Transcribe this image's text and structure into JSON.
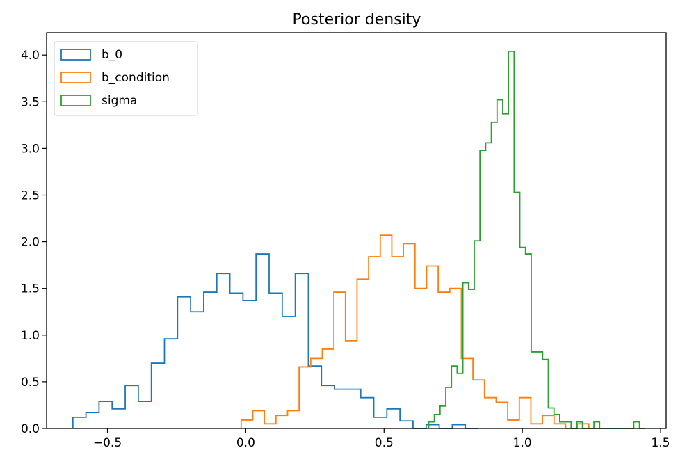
{
  "chart_data": {
    "type": "histogram",
    "title": "Posterior density",
    "xlabel": "",
    "ylabel": "",
    "xlim": [
      -0.72,
      1.52
    ],
    "ylim": [
      0,
      4.24
    ],
    "x_ticks": [
      -0.5,
      0.0,
      0.5,
      1.0,
      1.5
    ],
    "x_tick_labels": [
      "−0.5",
      "0.0",
      "0.5",
      "1.0",
      "1.5"
    ],
    "y_ticks": [
      0.0,
      0.5,
      1.0,
      1.5,
      2.0,
      2.5,
      3.0,
      3.5,
      4.0
    ],
    "y_tick_labels": [
      "0.0",
      "0.5",
      "1.0",
      "1.5",
      "2.0",
      "2.5",
      "3.0",
      "3.5",
      "4.0"
    ],
    "grid": false,
    "legend_position": "top-left",
    "series": [
      {
        "name": "b_0",
        "color": "#1f77b4",
        "edges": [
          -0.625,
          -0.5777,
          -0.5304,
          -0.4831,
          -0.4358,
          -0.3885,
          -0.3412,
          -0.2939,
          -0.2466,
          -0.1993,
          -0.152,
          -0.1047,
          -0.0574,
          -0.0101,
          0.0372,
          0.0845,
          0.1318,
          0.1791,
          0.2264,
          0.2737,
          0.321,
          0.3683,
          0.4156,
          0.4629,
          0.5102,
          0.5575,
          0.6048,
          0.6521,
          0.6994,
          0.7467,
          0.794,
          0.8413
        ],
        "densities": [
          0.12,
          0.17,
          0.29,
          0.21,
          0.46,
          0.29,
          0.7,
          0.96,
          1.41,
          1.25,
          1.46,
          1.66,
          1.45,
          1.37,
          1.87,
          1.45,
          1.2,
          1.66,
          0.67,
          0.46,
          0.42,
          0.42,
          0.33,
          0.12,
          0.21,
          0.08,
          0.0,
          0.04,
          0.0,
          0.04,
          0.0
        ]
      },
      {
        "name": "b_condition",
        "color": "#ff7f0e",
        "edges": [
          -0.0166,
          0.0253,
          0.0672,
          0.1091,
          0.151,
          0.1929,
          0.2348,
          0.2767,
          0.3186,
          0.3605,
          0.4024,
          0.4443,
          0.4862,
          0.5281,
          0.57,
          0.6119,
          0.6538,
          0.6957,
          0.7376,
          0.7795,
          0.8214,
          0.8633,
          0.9052,
          0.9471,
          0.989,
          1.0309,
          1.0728,
          1.1147,
          1.1566,
          1.1985,
          1.2404,
          1.2823
        ],
        "densities": [
          0.09,
          0.19,
          0.05,
          0.14,
          0.19,
          0.66,
          0.75,
          0.85,
          1.46,
          0.94,
          1.6,
          1.84,
          2.07,
          1.84,
          1.98,
          1.5,
          1.74,
          1.46,
          1.5,
          0.75,
          0.52,
          0.33,
          0.28,
          0.09,
          0.33,
          0.05,
          0.14,
          0.05,
          0.0,
          0.05,
          0.0
        ]
      },
      {
        "name": "sigma",
        "color": "#2ca02c",
        "edges": [
          0.6613,
          0.6819,
          0.7025,
          0.7231,
          0.7437,
          0.7643,
          0.7849,
          0.8055,
          0.8261,
          0.8467,
          0.8673,
          0.8879,
          0.9085,
          0.9291,
          0.9497,
          0.9703,
          0.9909,
          1.0115,
          1.0321,
          1.0527,
          1.0733,
          1.0939,
          1.1145,
          1.1351,
          1.1557,
          1.1763,
          1.1969,
          1.2175,
          1.2381,
          1.2587,
          1.2793,
          1.2999,
          1.3205,
          1.3411,
          1.3617,
          1.3823,
          1.4029,
          1.4235,
          1.4441
        ],
        "densities": [
          0.07,
          0.15,
          0.24,
          0.44,
          0.67,
          0.59,
          1.56,
          1.49,
          2.01,
          2.98,
          3.06,
          3.28,
          3.52,
          3.37,
          4.04,
          2.53,
          1.94,
          1.87,
          0.82,
          0.82,
          0.74,
          0.22,
          0.15,
          0.07,
          0.07,
          0.0,
          0.07,
          0.0,
          0.0,
          0.07,
          0.0,
          0.0,
          0.0,
          0.0,
          0.0,
          0.0,
          0.07,
          0.0
        ]
      }
    ]
  }
}
